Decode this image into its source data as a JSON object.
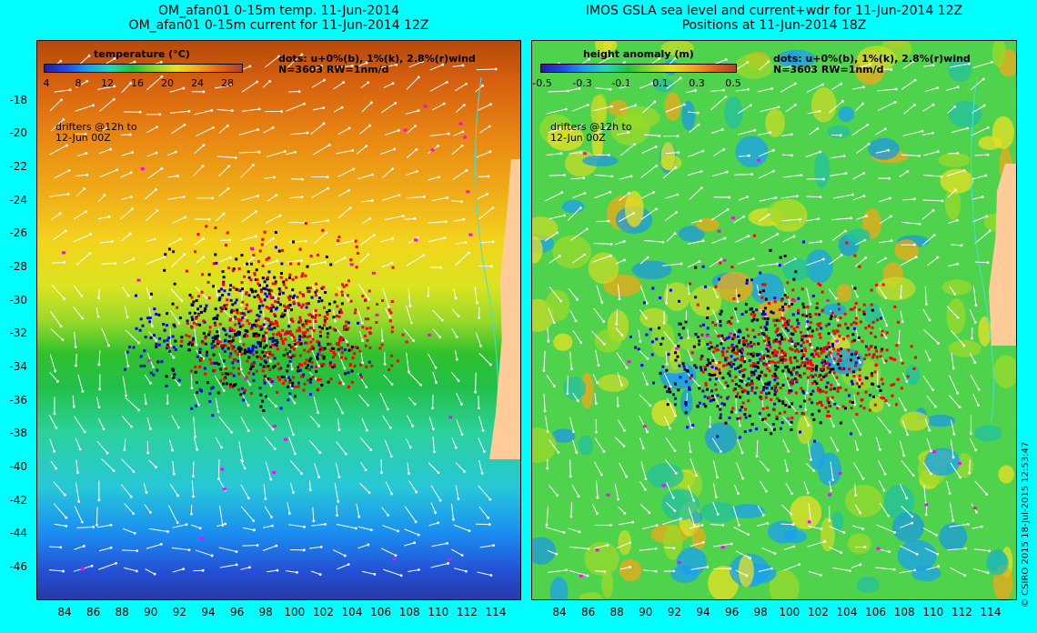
{
  "left_title": {
    "line1": "OM_afan01 0-15m temp. 11-Jun-2014",
    "line2": "OM_afan01 0-15m current for 11-Jun-2014 12Z"
  },
  "right_title": {
    "line1": "IMOS GSLA sea level and current+wdr for 11-Jun-2014 12Z",
    "line2": "Positions at 11-Jun-2014 18Z"
  },
  "left_panel": {
    "colorbar_title": "temperature (°C)",
    "colorbar_ticks": [
      "4",
      "8",
      "12",
      "16",
      "20",
      "24",
      "28"
    ],
    "legend_line1": "dots: u+0%(b), 1%(k), 2.8%(r)wind",
    "legend_line2": "N=3603 RW=1nm/d",
    "drifter_note_line1": "drifters @12h to",
    "drifter_note_line2": "12-Jun 00Z"
  },
  "right_panel": {
    "colorbar_title": "height anomaly (m)",
    "colorbar_ticks": [
      "-0.5",
      "-0.3",
      "-0.1",
      "0.1",
      "0.3",
      "0.5"
    ],
    "legend_line1": "dots: u+0%(b), 1%(k), 2.8%(r)wind",
    "legend_line2": "N=3603 RW=1nm/d",
    "drifter_note_line1": "drifters @12h to",
    "drifter_note_line2": "12-Jun 00Z"
  },
  "y_axis_labels": [
    "-18",
    "-20",
    "-22",
    "-24",
    "-26",
    "-28",
    "-30",
    "-32",
    "-34",
    "-36",
    "-38",
    "-40",
    "-42",
    "-44",
    "-46"
  ],
  "x_axis_labels": [
    "84",
    "86",
    "88",
    "90",
    "92",
    "94",
    "96",
    "98",
    "100",
    "102",
    "104",
    "106",
    "108",
    "110",
    "112",
    "114"
  ],
  "credit": "© CSIRO 2015   18-Jul-2015 12:53:47",
  "colors": {
    "background": "#00ffff",
    "land": "#ffcc99",
    "drifter_b": "#0000ff",
    "drifter_k": "#000000",
    "drifter_r": "#ff0000",
    "marker_magenta": "#ff00ff",
    "arrows": "#ffffff"
  }
}
